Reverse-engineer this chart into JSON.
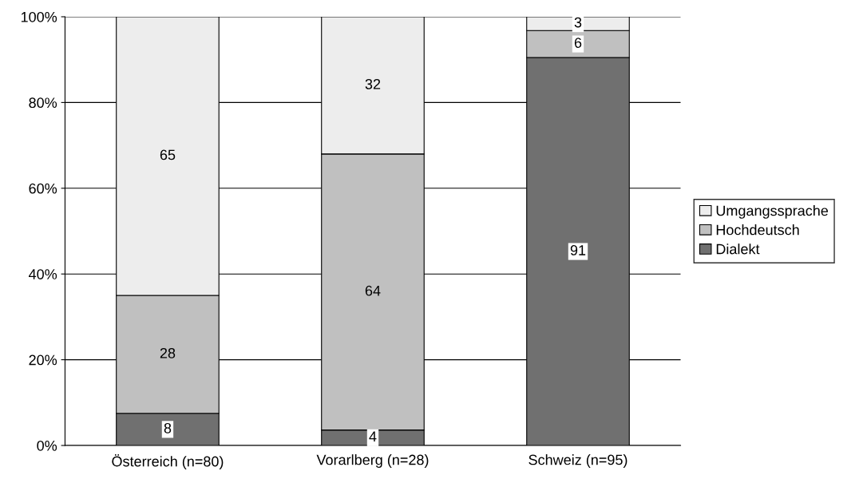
{
  "chart_data": {
    "type": "bar",
    "stacked": true,
    "categories": [
      "Österreich (n=80)",
      "Vorarlberg (n=28)",
      "Schweiz (n=95)"
    ],
    "series": [
      {
        "name": "Dialekt",
        "color": "#707070",
        "values": [
          7.5,
          3.6,
          90.5
        ],
        "value_labels": [
          "8",
          "4",
          "91"
        ]
      },
      {
        "name": "Hochdeutsch",
        "color": "#c0c0c0",
        "values": [
          27.5,
          64.4,
          6.3
        ],
        "value_labels": [
          "28",
          "64",
          "6"
        ]
      },
      {
        "name": "Umgangssprache",
        "color": "#ededed",
        "values": [
          65,
          32,
          3.2
        ],
        "value_labels": [
          "65",
          "32",
          "3"
        ]
      }
    ],
    "ylim": [
      0,
      100
    ],
    "yticks": [
      {
        "value": 0,
        "label": "0%"
      },
      {
        "value": 20,
        "label": "20%"
      },
      {
        "value": 40,
        "label": "40%"
      },
      {
        "value": 60,
        "label": "60%"
      },
      {
        "value": 80,
        "label": "80%"
      },
      {
        "value": 100,
        "label": "100%"
      }
    ],
    "grid": "y",
    "legend": "right"
  }
}
